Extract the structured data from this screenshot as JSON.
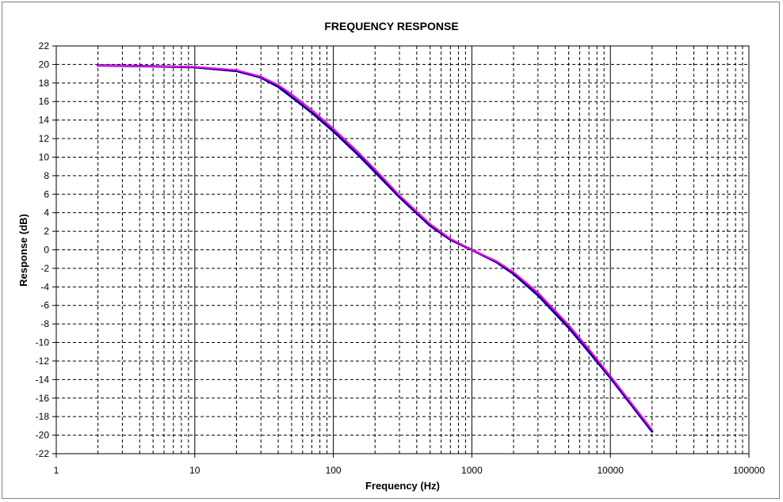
{
  "chart_data": {
    "type": "line",
    "title": "FREQUENCY RESPONSE",
    "xlabel": "Frequency (Hz)",
    "ylabel": "Response (dB)",
    "x_scale": "log",
    "xlim": [
      1,
      100000
    ],
    "ylim": [
      -22,
      22
    ],
    "x_major_ticks": [
      1,
      10,
      100,
      1000,
      10000,
      100000
    ],
    "x_tick_labels": [
      "1",
      "10",
      "100",
      "1000",
      "10000",
      "100000"
    ],
    "y_ticks": [
      22,
      20,
      18,
      16,
      14,
      12,
      10,
      8,
      6,
      4,
      2,
      0,
      -2,
      -4,
      -6,
      -8,
      -10,
      -12,
      -14,
      -16,
      -18,
      -20,
      -22
    ],
    "y_tick_labels": [
      "22",
      "20",
      "18",
      "16",
      "14",
      "12",
      "10",
      "8",
      "6",
      "4",
      "2",
      "0",
      "-2",
      "-4",
      "-6",
      "-8",
      "-10",
      "-12",
      "-14",
      "-16",
      "-18",
      "-20",
      "-22"
    ],
    "grid": true,
    "legend": "none",
    "series": [
      {
        "color": "#000080",
        "x": [
          2,
          5,
          10,
          20,
          30,
          40,
          50,
          70,
          100,
          150,
          200,
          300,
          500,
          700,
          1000,
          1500,
          2000,
          3000,
          5000,
          7000,
          10000,
          15000,
          20000
        ],
        "values": [
          19.9,
          19.8,
          19.7,
          19.3,
          18.6,
          17.6,
          16.5,
          14.8,
          12.8,
          10.3,
          8.4,
          5.7,
          2.6,
          1.1,
          0.0,
          -1.3,
          -2.6,
          -4.9,
          -8.4,
          -11.0,
          -13.8,
          -17.2,
          -19.6
        ]
      },
      {
        "color": "#FF00FF",
        "x": [
          2,
          5,
          10,
          20,
          30,
          40,
          50,
          70,
          100,
          150,
          200,
          300,
          500,
          700,
          1000,
          1500,
          2000,
          3000,
          5000,
          7000,
          10000,
          15000,
          20000
        ],
        "values": [
          19.9,
          19.8,
          19.75,
          19.4,
          18.7,
          17.8,
          16.8,
          15.1,
          13.1,
          10.6,
          8.7,
          5.9,
          2.8,
          1.2,
          0.0,
          -1.2,
          -2.4,
          -4.6,
          -8.1,
          -10.7,
          -13.6,
          -17.0,
          -19.4
        ]
      }
    ]
  }
}
